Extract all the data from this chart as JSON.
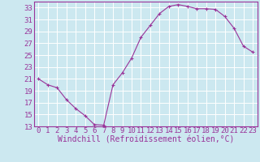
{
  "x": [
    0,
    1,
    2,
    3,
    4,
    5,
    6,
    7,
    8,
    9,
    10,
    11,
    12,
    13,
    14,
    15,
    16,
    17,
    18,
    19,
    20,
    21,
    22,
    23
  ],
  "y": [
    21,
    20,
    19.5,
    17.5,
    16,
    14.8,
    13.3,
    13.2,
    20,
    22,
    24.5,
    28,
    30,
    32,
    33.2,
    33.5,
    33.2,
    32.8,
    32.8,
    32.7,
    31.5,
    29.5,
    26.5,
    25.5
  ],
  "line_color": "#993399",
  "marker": "+",
  "marker_size": 3,
  "bg_color": "#cce8f0",
  "grid_color": "#ffffff",
  "xlabel": "Windchill (Refroidissement éolien,°C)",
  "xlabel_color": "#993399",
  "tick_color": "#993399",
  "axis_color": "#993399",
  "ylim": [
    13,
    34
  ],
  "xlim": [
    -0.5,
    23.5
  ],
  "yticks": [
    13,
    15,
    17,
    19,
    21,
    23,
    25,
    27,
    29,
    31,
    33
  ],
  "xticks": [
    0,
    1,
    2,
    3,
    4,
    5,
    6,
    7,
    8,
    9,
    10,
    11,
    12,
    13,
    14,
    15,
    16,
    17,
    18,
    19,
    20,
    21,
    22,
    23
  ],
  "font_size": 6.5,
  "label_font_size": 7
}
